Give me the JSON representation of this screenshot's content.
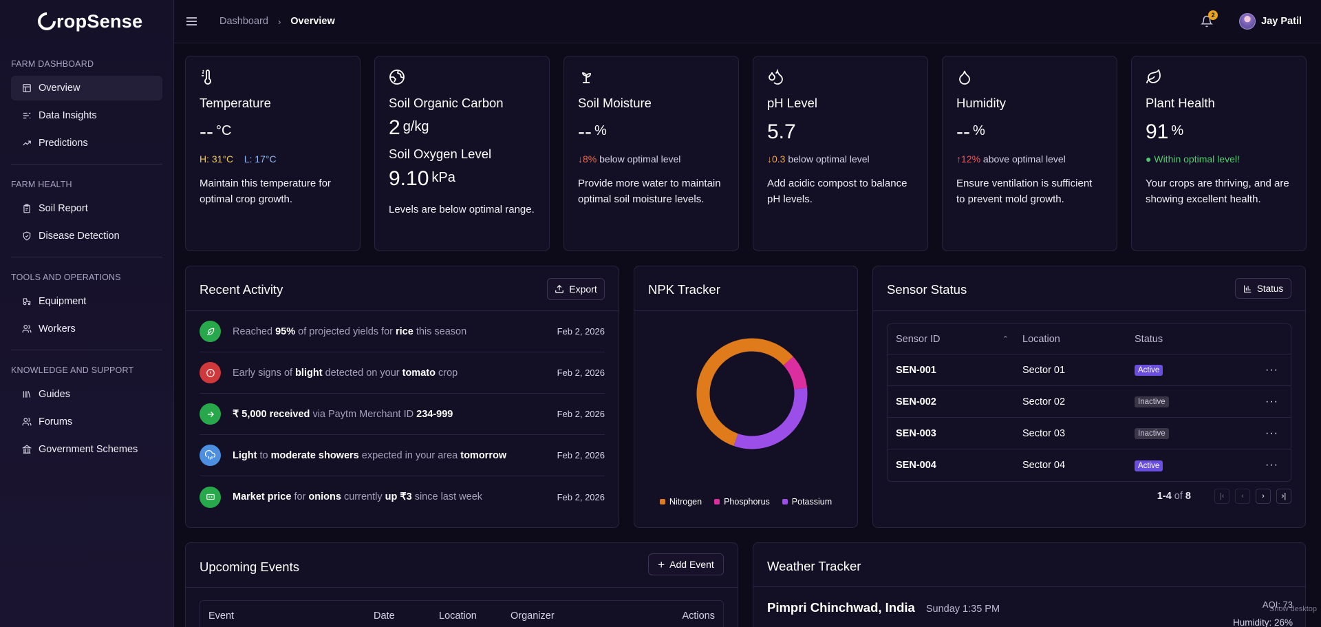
{
  "brand": {
    "logo_letter": "C",
    "logo_rest": "ropSense"
  },
  "sidebar": {
    "sections": [
      {
        "heading": "FARM DASHBOARD",
        "items": [
          {
            "label": "Overview",
            "icon": "layout-icon",
            "active": true
          },
          {
            "label": "Data Insights",
            "icon": "chart-bars-icon"
          },
          {
            "label": "Predictions",
            "icon": "trend-icon"
          }
        ]
      },
      {
        "heading": "FARM HEALTH",
        "items": [
          {
            "label": "Soil Report",
            "icon": "clipboard-icon"
          },
          {
            "label": "Disease Detection",
            "icon": "shield-icon"
          }
        ]
      },
      {
        "heading": "TOOLS AND OPERATIONS",
        "items": [
          {
            "label": "Equipment",
            "icon": "tractor-icon"
          },
          {
            "label": "Workers",
            "icon": "users-icon"
          }
        ]
      },
      {
        "heading": "KNOWLEDGE AND SUPPORT",
        "items": [
          {
            "label": "Guides",
            "icon": "library-icon"
          },
          {
            "label": "Forums",
            "icon": "users-icon"
          },
          {
            "label": "Government Schemes",
            "icon": "landmark-icon"
          }
        ]
      }
    ]
  },
  "topbar": {
    "breadcrumb": [
      "Dashboard",
      "Overview"
    ],
    "notifications_count": "2",
    "user_name": "Jay Patil"
  },
  "metrics": {
    "temperature": {
      "title": "Temperature",
      "value": "--",
      "unit": "°C",
      "high": "H: 31°C",
      "low": "L: 17°C",
      "desc": "Maintain this temperature for optimal crop growth."
    },
    "carbon": {
      "title": "Soil Organic Carbon",
      "value": "2",
      "unit": "g/kg",
      "title2": "Soil Oxygen Level",
      "value2": "9.10",
      "unit2": "kPa",
      "desc": "Levels are below optimal range."
    },
    "moisture": {
      "title": "Soil Moisture",
      "value": "--",
      "unit": "%",
      "delta": "8%",
      "delta_text": "below optimal level",
      "desc": "Provide more water to maintain optimal soil moisture levels."
    },
    "ph": {
      "title": "pH Level",
      "value": "5.7",
      "unit": "",
      "delta": "0.3",
      "delta_text": "below optimal level",
      "desc": "Add acidic compost to balance pH levels."
    },
    "humidity": {
      "title": "Humidity",
      "value": "--",
      "unit": "%",
      "delta": "12%",
      "delta_text": "above optimal level",
      "desc": "Ensure ventilation is sufficient to prevent mold growth."
    },
    "plant": {
      "title": "Plant Health",
      "value": "91",
      "unit": "%",
      "status": "Within optimal level!",
      "desc": "Your crops are thriving, and are showing excellent health."
    }
  },
  "activity": {
    "title": "Recent Activity",
    "export_label": "Export",
    "items": [
      {
        "icon": "sprout-icon",
        "color": "#27a84a",
        "segments": [
          [
            "Reached ",
            false
          ],
          [
            "95%",
            true
          ],
          [
            " of projected yields for ",
            false
          ],
          [
            "rice",
            true
          ],
          [
            " this season",
            false
          ]
        ],
        "date": "Feb 2, 2026"
      },
      {
        "icon": "alert-icon",
        "color": "#d0393c",
        "segments": [
          [
            "Early signs of ",
            false
          ],
          [
            "blight",
            true
          ],
          [
            " detected on your ",
            false
          ],
          [
            "tomato",
            true
          ],
          [
            " crop",
            false
          ]
        ],
        "date": "Feb 2, 2026"
      },
      {
        "icon": "arrow-right-icon",
        "color": "#27a84a",
        "segments": [
          [
            "₹ 5,000 received",
            true
          ],
          [
            " via Paytm Merchant ID ",
            false
          ],
          [
            "234-999",
            true
          ]
        ],
        "date": "Feb 2, 2026"
      },
      {
        "icon": "cloud-rain-icon",
        "color": "#4c8fe0",
        "segments": [
          [
            "Light",
            true
          ],
          [
            " to ",
            false
          ],
          [
            "moderate showers",
            true
          ],
          [
            " expected in your area ",
            false
          ],
          [
            "tomorrow",
            true
          ]
        ],
        "date": "Feb 2, 2026"
      },
      {
        "icon": "store-icon",
        "color": "#27a84a",
        "segments": [
          [
            "Market price",
            true
          ],
          [
            " for ",
            false
          ],
          [
            "onions",
            true
          ],
          [
            " currently ",
            false
          ],
          [
            "up ₹3",
            true
          ],
          [
            " since last week",
            false
          ]
        ],
        "date": "Feb 2, 2026"
      }
    ]
  },
  "npk": {
    "title": "NPK Tracker",
    "legend": [
      "Nitrogen",
      "Phosphorus",
      "Potassium"
    ]
  },
  "chart_data": {
    "type": "pie",
    "categories": [
      "Nitrogen",
      "Phosphorus",
      "Potassium"
    ],
    "values": [
      58,
      10,
      32
    ],
    "colors": [
      "#e07b1c",
      "#db2fa0",
      "#9b4fe8"
    ],
    "donut": true,
    "legend": "bottom"
  },
  "sensors": {
    "title": "Sensor Status",
    "status_button": "Status",
    "columns": [
      "Sensor ID",
      "Location",
      "Status"
    ],
    "rows": [
      {
        "id": "SEN-001",
        "location": "Sector 01",
        "status": "Active"
      },
      {
        "id": "SEN-002",
        "location": "Sector 02",
        "status": "Inactive"
      },
      {
        "id": "SEN-003",
        "location": "Sector 03",
        "status": "Inactive"
      },
      {
        "id": "SEN-004",
        "location": "Sector 04",
        "status": "Active"
      }
    ],
    "range": "1-4",
    "of": "of",
    "total": "8"
  },
  "events": {
    "title": "Upcoming Events",
    "add_label": "Add Event",
    "columns": [
      "Event",
      "Date",
      "Location",
      "Organizer",
      "Actions"
    ]
  },
  "weather": {
    "title": "Weather Tracker",
    "location": "Pimpri Chinchwad, India",
    "time": "Sunday 1:35 PM",
    "aqi": "AQI: 73",
    "humidity": "Humidity: 26%"
  },
  "overlay": {
    "show_desktop": "Show desktop"
  },
  "colors": {
    "accent": "#6a4ee0",
    "bg": "#0d0b1a",
    "card": "#130f24"
  }
}
